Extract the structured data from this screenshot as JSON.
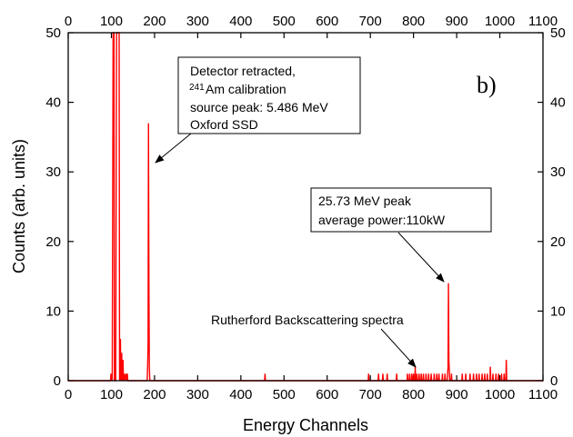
{
  "chart_data": {
    "type": "line",
    "panel_label": "b)",
    "xlabel": "Energy Channels",
    "ylabel": "Counts (arb. units)",
    "xlim": [
      0,
      1100
    ],
    "ylim": [
      0,
      50
    ],
    "x_ticks": [
      0,
      100,
      200,
      300,
      400,
      500,
      600,
      700,
      800,
      900,
      1000,
      1100
    ],
    "y_ticks": [
      0,
      10,
      20,
      30,
      40,
      50
    ],
    "x_tick_labels": [
      "0",
      "100",
      "200",
      "300",
      "400",
      "500",
      "600",
      "700",
      "800",
      "900",
      "1000",
      "1100"
    ],
    "y_tick_labels": [
      "0",
      "10",
      "20",
      "30",
      "40",
      "50"
    ],
    "mirror_axes": true,
    "grid": false,
    "series_color": "#ff0000",
    "series": [
      {
        "points": [
          [
            0,
            0
          ],
          [
            98,
            0
          ],
          [
            99,
            1
          ],
          [
            100,
            0
          ],
          [
            101,
            1
          ],
          [
            102,
            0
          ],
          [
            104,
            50
          ],
          [
            106,
            50
          ],
          [
            107,
            0
          ],
          [
            110,
            0
          ],
          [
            112,
            50
          ],
          [
            118,
            50
          ],
          [
            119,
            0
          ],
          [
            121,
            6
          ],
          [
            122,
            0
          ],
          [
            124,
            4
          ],
          [
            125,
            0
          ],
          [
            127,
            3
          ],
          [
            128,
            0
          ],
          [
            130,
            1
          ],
          [
            131,
            0
          ],
          [
            134,
            1
          ],
          [
            135,
            0
          ],
          [
            137,
            1
          ],
          [
            138,
            0
          ],
          [
            140,
            0
          ],
          [
            183,
            0
          ],
          [
            184,
            2
          ],
          [
            185,
            5
          ],
          [
            186,
            37
          ],
          [
            187,
            14
          ],
          [
            188,
            2
          ],
          [
            189,
            0
          ],
          [
            455,
            0
          ],
          [
            456,
            1
          ],
          [
            457,
            0
          ],
          [
            695,
            0
          ],
          [
            696,
            1
          ],
          [
            697,
            0
          ],
          [
            718,
            0
          ],
          [
            719,
            1
          ],
          [
            720,
            0
          ],
          [
            728,
            0
          ],
          [
            729,
            1
          ],
          [
            730,
            0
          ],
          [
            738,
            0
          ],
          [
            739,
            1
          ],
          [
            740,
            0
          ],
          [
            760,
            0
          ],
          [
            761,
            1
          ],
          [
            762,
            0
          ],
          [
            785,
            0
          ],
          [
            786,
            1
          ],
          [
            787,
            0
          ],
          [
            790,
            0
          ],
          [
            791,
            1
          ],
          [
            792,
            0
          ],
          [
            795,
            0
          ],
          [
            796,
            1
          ],
          [
            797,
            0
          ],
          [
            799,
            0
          ],
          [
            800,
            1
          ],
          [
            801,
            0
          ],
          [
            803,
            0
          ],
          [
            804,
            2
          ],
          [
            805,
            0
          ],
          [
            807,
            0
          ],
          [
            808,
            1
          ],
          [
            809,
            0
          ],
          [
            812,
            0
          ],
          [
            813,
            1
          ],
          [
            814,
            0
          ],
          [
            817,
            0
          ],
          [
            818,
            1
          ],
          [
            819,
            0
          ],
          [
            822,
            0
          ],
          [
            823,
            1
          ],
          [
            824,
            0
          ],
          [
            828,
            0
          ],
          [
            829,
            1
          ],
          [
            830,
            0
          ],
          [
            834,
            0
          ],
          [
            835,
            1
          ],
          [
            836,
            0
          ],
          [
            840,
            0
          ],
          [
            841,
            1
          ],
          [
            842,
            0
          ],
          [
            847,
            0
          ],
          [
            848,
            1
          ],
          [
            849,
            0
          ],
          [
            853,
            0
          ],
          [
            854,
            1
          ],
          [
            855,
            0
          ],
          [
            858,
            0
          ],
          [
            859,
            1
          ],
          [
            860,
            0
          ],
          [
            866,
            0
          ],
          [
            867,
            1
          ],
          [
            868,
            0
          ],
          [
            872,
            0
          ],
          [
            873,
            1
          ],
          [
            874,
            0
          ],
          [
            878,
            0
          ],
          [
            880,
            2
          ],
          [
            881,
            14
          ],
          [
            882,
            3
          ],
          [
            884,
            0
          ],
          [
            887,
            0
          ],
          [
            888,
            1
          ],
          [
            889,
            0
          ],
          [
            912,
            0
          ],
          [
            913,
            1
          ],
          [
            914,
            0
          ],
          [
            920,
            0
          ],
          [
            921,
            1
          ],
          [
            922,
            0
          ],
          [
            930,
            0
          ],
          [
            931,
            1
          ],
          [
            932,
            0
          ],
          [
            938,
            0
          ],
          [
            939,
            1
          ],
          [
            940,
            0
          ],
          [
            945,
            0
          ],
          [
            946,
            1
          ],
          [
            947,
            0
          ],
          [
            951,
            0
          ],
          [
            952,
            1
          ],
          [
            953,
            0
          ],
          [
            958,
            0
          ],
          [
            959,
            1
          ],
          [
            960,
            0
          ],
          [
            964,
            0
          ],
          [
            965,
            1
          ],
          [
            966,
            0
          ],
          [
            970,
            0
          ],
          [
            971,
            1
          ],
          [
            972,
            0
          ],
          [
            977,
            0
          ],
          [
            978,
            2
          ],
          [
            979,
            0
          ],
          [
            983,
            0
          ],
          [
            984,
            1
          ],
          [
            985,
            0
          ],
          [
            990,
            0
          ],
          [
            991,
            1
          ],
          [
            992,
            0
          ],
          [
            996,
            0
          ],
          [
            997,
            1
          ],
          [
            998,
            0
          ],
          [
            1003,
            0
          ],
          [
            1004,
            1
          ],
          [
            1005,
            0
          ],
          [
            1009,
            0
          ],
          [
            1010,
            1
          ],
          [
            1011,
            0
          ],
          [
            1014,
            0
          ],
          [
            1015,
            3
          ],
          [
            1016,
            0
          ],
          [
            1019,
            0
          ],
          [
            1100,
            0
          ]
        ]
      }
    ],
    "annotations": [
      {
        "id": "detector",
        "lines": [
          "Detector retracted,",
          "Am calibration",
          "source peak: 5.486 MeV",
          "Oxford SSD"
        ],
        "superscript": "241",
        "boxed": true,
        "arrow_to": [
          186,
          31.5
        ]
      },
      {
        "id": "peak",
        "lines": [
          "25.73 MeV peak",
          "average power:110kW"
        ],
        "boxed": true,
        "arrow_to": [
          880,
          14.5
        ]
      },
      {
        "id": "rbs",
        "lines": [
          "Rutherford Backscattering spectra"
        ],
        "boxed": false,
        "arrow_to": [
          808,
          2
        ]
      }
    ]
  }
}
